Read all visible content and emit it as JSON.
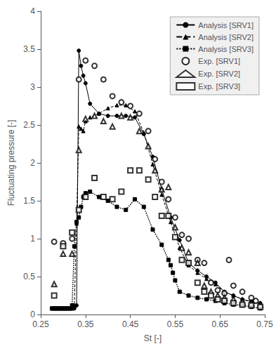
{
  "chart_data": {
    "type": "line",
    "xlabel": "St [-]",
    "ylabel": "Fluctuating pressure [-]",
    "xlim": [
      0.25,
      0.75
    ],
    "ylim": [
      0,
      4
    ],
    "xticks": [
      0.25,
      0.35,
      0.45,
      0.55,
      0.65,
      0.75
    ],
    "yticks": [
      0,
      0.5,
      1,
      1.5,
      2,
      2.5,
      3,
      3.5,
      4
    ],
    "grid": false,
    "legend": "upper right",
    "color": "black",
    "series": [
      {
        "name": "Analysis [SRV1]",
        "type": "line",
        "marker": "circle",
        "line_style": "solid",
        "x": [
          0.275,
          0.28,
          0.285,
          0.29,
          0.295,
          0.3,
          0.305,
          0.31,
          0.315,
          0.32,
          0.325,
          0.33,
          0.335,
          0.34,
          0.345,
          0.35,
          0.36,
          0.38,
          0.4,
          0.42,
          0.44,
          0.46,
          0.48,
          0.5,
          0.52,
          0.54,
          0.56,
          0.58,
          0.6,
          0.62,
          0.64,
          0.66,
          0.68,
          0.7,
          0.72,
          0.74
        ],
        "values": [
          0.08,
          0.08,
          0.08,
          0.08,
          0.08,
          0.08,
          0.08,
          0.08,
          0.08,
          0.08,
          0.08,
          0.12,
          3.48,
          3.28,
          3.15,
          3.05,
          2.78,
          2.65,
          2.62,
          2.62,
          2.62,
          2.6,
          2.38,
          2.08,
          1.65,
          1.28,
          0.98,
          0.68,
          0.58,
          0.5,
          0.42,
          0.3,
          0.25,
          0.2,
          0.17,
          0.15
        ]
      },
      {
        "name": "Analysis [SRV2]",
        "type": "line",
        "marker": "triangle",
        "line_style": "dashed",
        "x": [
          0.275,
          0.28,
          0.285,
          0.29,
          0.295,
          0.3,
          0.305,
          0.31,
          0.315,
          0.32,
          0.325,
          0.33,
          0.335,
          0.34,
          0.345,
          0.35,
          0.36,
          0.38,
          0.4,
          0.42,
          0.44,
          0.46,
          0.48,
          0.5,
          0.52,
          0.54,
          0.56,
          0.58,
          0.6,
          0.62,
          0.64,
          0.66,
          0.68,
          0.7,
          0.72,
          0.74
        ],
        "values": [
          0.08,
          0.08,
          0.08,
          0.08,
          0.08,
          0.08,
          0.08,
          0.08,
          0.08,
          0.08,
          0.12,
          1.2,
          2.48,
          2.45,
          2.42,
          2.55,
          2.6,
          2.65,
          2.72,
          2.76,
          2.76,
          2.68,
          2.4,
          1.98,
          1.58,
          1.22,
          0.88,
          0.65,
          0.55,
          0.47,
          0.4,
          0.3,
          0.25,
          0.2,
          0.17,
          0.14
        ]
      },
      {
        "name": "Analysis [SRV3]",
        "type": "line",
        "marker": "square",
        "line_style": "dotted",
        "x": [
          0.275,
          0.28,
          0.285,
          0.29,
          0.295,
          0.3,
          0.305,
          0.31,
          0.315,
          0.32,
          0.325,
          0.33,
          0.335,
          0.34,
          0.345,
          0.35,
          0.36,
          0.38,
          0.4,
          0.42,
          0.44,
          0.46,
          0.48,
          0.5,
          0.52,
          0.535,
          0.54,
          0.545,
          0.55,
          0.56,
          0.58,
          0.6,
          0.62,
          0.64,
          0.66,
          0.68,
          0.7,
          0.72,
          0.74
        ],
        "values": [
          0.08,
          0.08,
          0.08,
          0.08,
          0.08,
          0.08,
          0.08,
          0.08,
          0.08,
          0.12,
          0.9,
          1.22,
          1.28,
          1.42,
          1.55,
          1.6,
          1.62,
          1.55,
          1.5,
          1.42,
          1.38,
          1.52,
          1.42,
          1.12,
          0.92,
          0.72,
          0.65,
          0.55,
          0.45,
          0.3,
          0.25,
          0.22,
          0.2,
          0.18,
          0.15,
          0.13,
          0.12,
          0.1,
          0.08
        ]
      },
      {
        "name": "Exp. [SRV1]",
        "type": "scatter",
        "marker": "open_circle",
        "x": [
          0.28,
          0.3,
          0.32,
          0.335,
          0.35,
          0.37,
          0.39,
          0.41,
          0.43,
          0.45,
          0.47,
          0.49,
          0.505,
          0.52,
          0.535,
          0.55,
          0.565,
          0.58,
          0.6,
          0.615,
          0.63,
          0.645,
          0.66,
          0.67,
          0.68,
          0.7,
          0.72,
          0.73
        ],
        "values": [
          0.96,
          0.94,
          1.0,
          3.1,
          3.35,
          3.28,
          3.1,
          2.88,
          2.8,
          2.75,
          2.65,
          2.42,
          2.05,
          1.75,
          1.52,
          1.28,
          1.05,
          1.0,
          0.72,
          0.68,
          0.42,
          0.32,
          0.28,
          0.72,
          0.38,
          0.3,
          0.22,
          0.18
        ]
      },
      {
        "name": "Exp. [SRV2]",
        "type": "scatter",
        "marker": "open_triangle",
        "x": [
          0.28,
          0.3,
          0.32,
          0.335,
          0.35,
          0.37,
          0.39,
          0.41,
          0.43,
          0.45,
          0.47,
          0.49,
          0.505,
          0.52,
          0.535,
          0.55,
          0.565,
          0.58,
          0.6,
          0.615,
          0.63,
          0.645,
          0.66,
          0.68,
          0.7,
          0.72,
          0.74
        ],
        "values": [
          0.4,
          0.8,
          0.8,
          2.17,
          2.58,
          2.62,
          2.55,
          2.48,
          2.62,
          2.6,
          2.42,
          2.22,
          1.9,
          1.65,
          1.68,
          1.15,
          0.88,
          0.82,
          0.68,
          0.38,
          0.3,
          0.25,
          0.22,
          0.2,
          0.17,
          0.15,
          0.13
        ]
      },
      {
        "name": "Exp. [SRV3]",
        "type": "scatter",
        "marker": "open_square",
        "x": [
          0.28,
          0.3,
          0.32,
          0.335,
          0.35,
          0.37,
          0.39,
          0.41,
          0.43,
          0.45,
          0.47,
          0.49,
          0.505,
          0.52,
          0.535,
          0.55,
          0.565,
          0.58,
          0.6,
          0.615,
          0.63,
          0.645,
          0.66,
          0.68,
          0.7,
          0.72,
          0.74
        ],
        "values": [
          0.25,
          0.9,
          1.08,
          1.38,
          1.55,
          1.8,
          1.55,
          1.52,
          1.62,
          1.9,
          1.9,
          1.78,
          1.55,
          1.3,
          1.3,
          1.02,
          0.72,
          0.68,
          0.42,
          0.3,
          0.25,
          0.2,
          0.18,
          0.15,
          0.13,
          0.12,
          0.1
        ]
      }
    ]
  }
}
